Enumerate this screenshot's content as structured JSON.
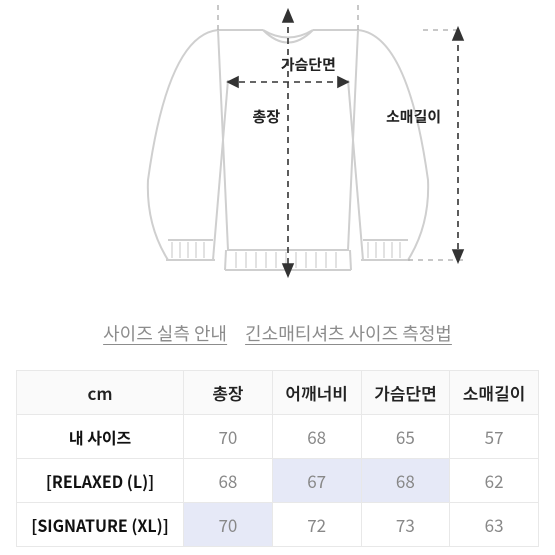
{
  "diagram": {
    "labels": {
      "chest": "가슴단면",
      "length": "총장",
      "sleeve": "소매길이"
    },
    "stroke": "#cfcfcf",
    "stroke_dark": "#9a9a9a",
    "arrow": "#333333",
    "text_color": "#222222"
  },
  "links": {
    "a": "사이즈 실측 안내",
    "b": "긴소매티셔츠 사이즈 측정법"
  },
  "table": {
    "header_unit": "cm",
    "columns": [
      "총장",
      "어깨너비",
      "가슴단면",
      "소매길이"
    ],
    "rows": [
      {
        "label": "내 사이즈",
        "v": [
          "70",
          "68",
          "65",
          "57"
        ],
        "hl": [
          false,
          false,
          false,
          false
        ]
      },
      {
        "label": "[RELAXED (L)]",
        "v": [
          "68",
          "67",
          "68",
          "62"
        ],
        "hl": [
          false,
          true,
          true,
          false
        ]
      },
      {
        "label": "[SIGNATURE (XL)]",
        "v": [
          "70",
          "72",
          "73",
          "63"
        ],
        "hl": [
          true,
          false,
          false,
          false
        ]
      }
    ]
  }
}
